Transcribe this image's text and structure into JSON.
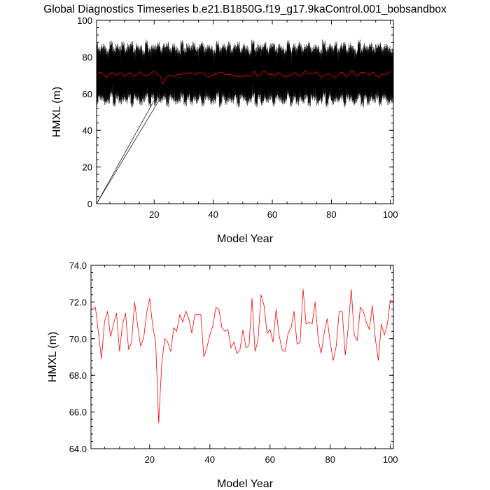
{
  "title": "Global Diagnostics Timeseries b.e21.B1850G.f19_g17.9kaControl.001_bobsandbox",
  "chart_data": [
    {
      "type": "line",
      "xlabel": "Model Year",
      "ylabel": "HMXL (m)",
      "xlim": [
        0.5,
        101
      ],
      "ylim": [
        0,
        100
      ],
      "xticks": [
        20,
        40,
        60,
        80,
        100
      ],
      "xtick_labels": [
        "20",
        "40",
        "60",
        "80",
        "100"
      ],
      "yticks": [
        0,
        20,
        40,
        60,
        80,
        100
      ],
      "ytick_labels": [
        "0",
        "20",
        "40",
        "60",
        "80",
        "100"
      ],
      "series": [
        {
          "color": "#000000",
          "description_style": "monthly",
          "x_start": 0.5,
          "x_end": 101,
          "seasonal_min": [
            54,
            58,
            57,
            55,
            56,
            59,
            54,
            58,
            55,
            57,
            56,
            58
          ],
          "seasonal_max": [
            87,
            84,
            86,
            85,
            83,
            88,
            84,
            86,
            85,
            87,
            84,
            86
          ],
          "spinup_lines": [
            [
              0.5,
              0,
              23,
              65
            ],
            [
              0.5,
              0,
              26,
              68
            ]
          ]
        },
        {
          "color": "#ff0000",
          "description_style": "annual",
          "ref": "annual_means"
        }
      ],
      "grid": false
    },
    {
      "type": "line",
      "xlabel": "Model Year",
      "ylabel": "HMXL (m)",
      "xlim": [
        0.5,
        101
      ],
      "ylim": [
        64,
        74
      ],
      "xticks": [
        20,
        40,
        60,
        80,
        100
      ],
      "xtick_labels": [
        "20",
        "40",
        "60",
        "80",
        "100"
      ],
      "yticks": [
        64,
        66,
        68,
        70,
        72,
        74
      ],
      "ytick_labels": [
        "64.0",
        "66.0",
        "68.0",
        "70.0",
        "72.0",
        "74.0"
      ],
      "series": [
        {
          "color": "#ff0000",
          "ref": "annual_means"
        }
      ],
      "grid": false
    }
  ],
  "annual_means": {
    "x": [
      1,
      2,
      3,
      4,
      5,
      6,
      7,
      8,
      9,
      10,
      11,
      12,
      13,
      14,
      15,
      16,
      17,
      18,
      19,
      20,
      21,
      22,
      23,
      24,
      25,
      26,
      27,
      28,
      29,
      30,
      31,
      32,
      33,
      34,
      35,
      36,
      37,
      38,
      39,
      40,
      41,
      42,
      43,
      44,
      45,
      46,
      47,
      48,
      49,
      50,
      51,
      52,
      53,
      54,
      55,
      56,
      57,
      58,
      59,
      60,
      61,
      62,
      63,
      64,
      65,
      66,
      67,
      68,
      69,
      70,
      71,
      72,
      73,
      74,
      75,
      76,
      77,
      78,
      79,
      80,
      81,
      82,
      83,
      84,
      85,
      86,
      87,
      88,
      89,
      90,
      91,
      92,
      93,
      94,
      95,
      96,
      97,
      98,
      99,
      100,
      101
    ],
    "y": [
      71.6,
      71.7,
      70.3,
      68.9,
      70.9,
      71.5,
      70.1,
      70.8,
      71.4,
      69.3,
      70.8,
      71.4,
      69.4,
      69.8,
      72.0,
      70.7,
      69.6,
      70.0,
      71.4,
      72.2,
      70.7,
      69.8,
      65.4,
      68.6,
      70.0,
      69.8,
      69.3,
      70.6,
      70.4,
      71.3,
      70.9,
      71.5,
      71.1,
      70.3,
      71.3,
      71.3,
      71.3,
      69.0,
      69.5,
      70.2,
      70.7,
      71.7,
      71.6,
      70.6,
      70.4,
      70.5,
      69.5,
      69.8,
      69.2,
      69.4,
      70.5,
      69.5,
      69.6,
      72.2,
      69.3,
      69.9,
      72.4,
      71.8,
      70.3,
      70.5,
      69.8,
      71.6,
      70.2,
      69.4,
      69.3,
      70.3,
      70.6,
      71.5,
      69.7,
      69.8,
      72.7,
      70.8,
      70.9,
      70.8,
      72.0,
      70.0,
      69.2,
      70.3,
      71.1,
      69.8,
      68.8,
      69.6,
      71.5,
      71.5,
      69.1,
      70.6,
      72.7,
      70.2,
      69.9,
      71.7,
      71.5,
      70.9,
      70.5,
      71.8,
      70.0,
      68.8,
      70.8,
      70.2,
      70.8,
      72.1,
      72.0
    ]
  }
}
